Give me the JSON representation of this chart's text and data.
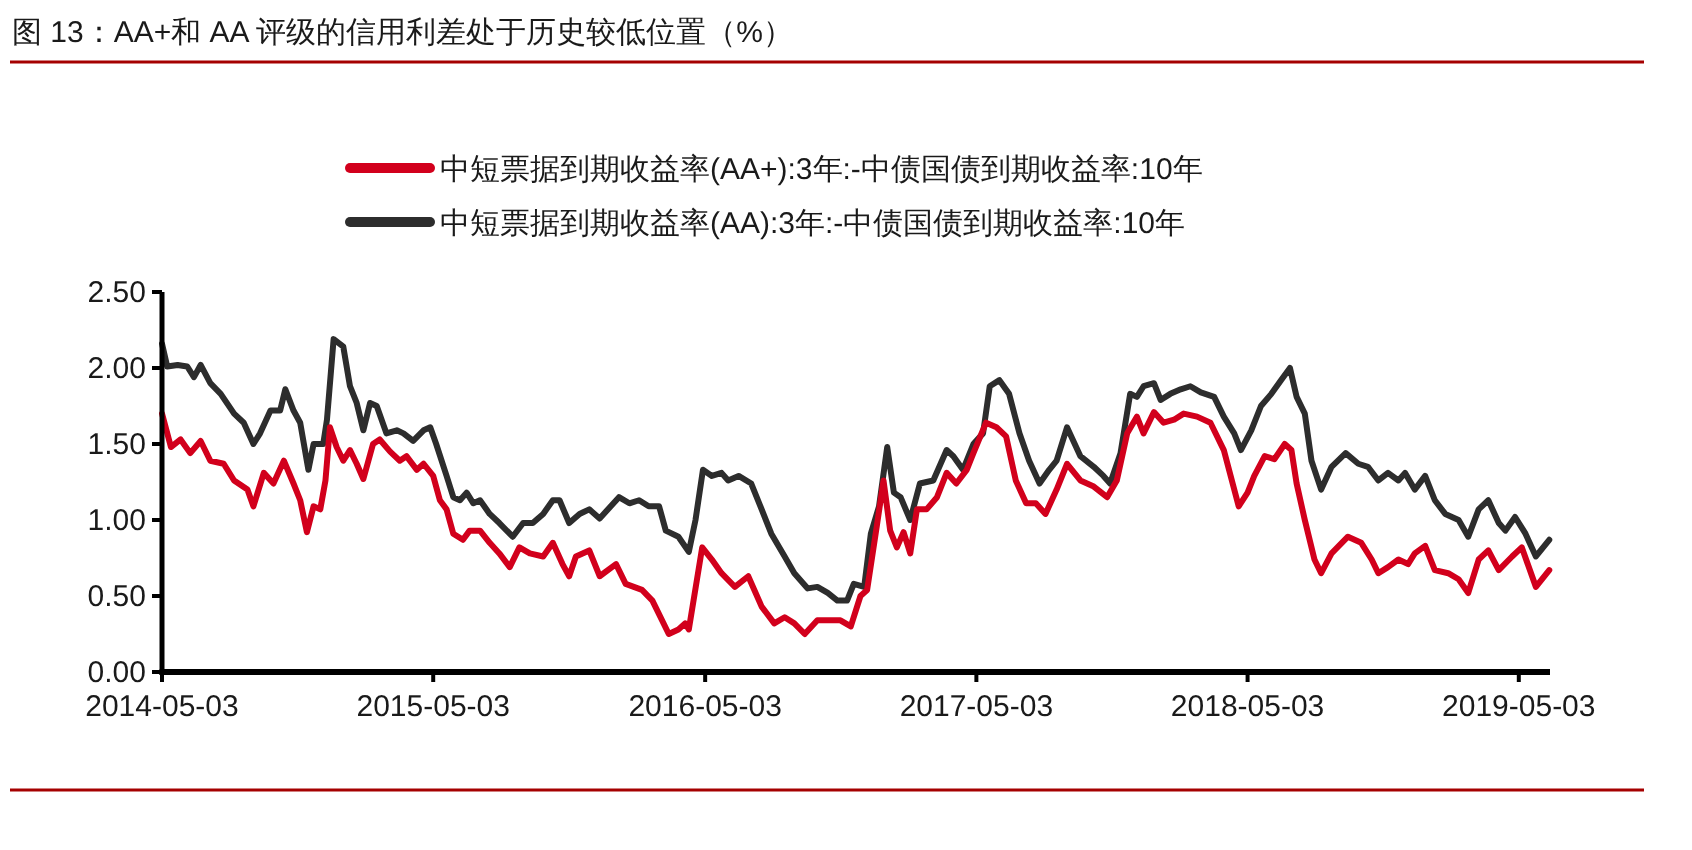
{
  "chart_data": {
    "type": "line",
    "title": "图 13：AA+和 AA 评级的信用利差处于历史较低位置（%）",
    "series": [
      {
        "name": "中短票据到期收益率(AA+):3年:-中债国债到期收益率:10年",
        "color": "#d2001c",
        "x": [
          "2014-05-03",
          "2014-05-15",
          "2014-05-28",
          "2014-06-10",
          "2014-06-24",
          "2014-07-07",
          "2014-07-25",
          "2014-08-08",
          "2014-08-26",
          "2014-09-03",
          "2014-09-17",
          "2014-09-30",
          "2014-10-14",
          "2014-10-27",
          "2014-11-05",
          "2014-11-14",
          "2014-11-23",
          "2014-12-02",
          "2014-12-09",
          "2014-12-15",
          "2014-12-24",
          "2015-01-02",
          "2015-01-11",
          "2015-01-20",
          "2015-01-29",
          "2015-02-11",
          "2015-02-20",
          "2015-03-06",
          "2015-03-19",
          "2015-03-28",
          "2015-04-11",
          "2015-04-20",
          "2015-05-03",
          "2015-05-12",
          "2015-05-21",
          "2015-05-30",
          "2015-06-12",
          "2015-06-21",
          "2015-07-05",
          "2015-07-18",
          "2015-07-31",
          "2015-08-14",
          "2015-08-27",
          "2015-09-10",
          "2015-09-28",
          "2015-10-11",
          "2015-10-24",
          "2015-11-02",
          "2015-11-11",
          "2015-11-29",
          "2015-12-13",
          "2016-01-04",
          "2016-01-17",
          "2016-02-08",
          "2016-02-22",
          "2016-03-15",
          "2016-03-28",
          "2016-04-06",
          "2016-04-11",
          "2016-04-29",
          "2016-05-12",
          "2016-05-25",
          "2016-06-12",
          "2016-06-30",
          "2016-07-18",
          "2016-08-04",
          "2016-08-18",
          "2016-08-31",
          "2016-09-14",
          "2016-10-01",
          "2016-10-19",
          "2016-11-01",
          "2016-11-15",
          "2016-11-28",
          "2016-12-07",
          "2016-12-20",
          "2016-12-29",
          "2017-01-07",
          "2017-01-16",
          "2017-01-25",
          "2017-02-03",
          "2017-02-12",
          "2017-02-25",
          "2017-03-11",
          "2017-03-24",
          "2017-04-06",
          "2017-04-20",
          "2017-04-29",
          "2017-05-16",
          "2017-05-30",
          "2017-06-12",
          "2017-06-25",
          "2017-07-09",
          "2017-07-22",
          "2017-08-04",
          "2017-08-19",
          "2017-09-02",
          "2017-09-20",
          "2017-10-08",
          "2017-10-26",
          "2017-11-08",
          "2017-11-22",
          "2017-12-05",
          "2017-12-14",
          "2017-12-28",
          "2018-01-10",
          "2018-01-24",
          "2018-02-06",
          "2018-02-24",
          "2018-03-14",
          "2018-04-01",
          "2018-04-21",
          "2018-05-03",
          "2018-05-12",
          "2018-05-26",
          "2018-06-08",
          "2018-06-22",
          "2018-07-01",
          "2018-07-08",
          "2018-07-19",
          "2018-08-01",
          "2018-08-10",
          "2018-08-24",
          "2018-09-15",
          "2018-10-03",
          "2018-10-17",
          "2018-10-26",
          "2018-11-08",
          "2018-11-22",
          "2018-12-05",
          "2018-12-14",
          "2018-12-28",
          "2019-01-10",
          "2019-01-28",
          "2019-02-11",
          "2019-02-24",
          "2019-03-10",
          "2019-03-23",
          "2019-04-06",
          "2019-04-24",
          "2019-05-07",
          "2019-05-26",
          "2019-06-13"
        ],
        "values": [
          1.7,
          1.48,
          1.53,
          1.44,
          1.52,
          1.39,
          1.37,
          1.26,
          1.2,
          1.09,
          1.31,
          1.24,
          1.39,
          1.24,
          1.13,
          0.92,
          1.09,
          1.07,
          1.26,
          1.61,
          1.48,
          1.39,
          1.46,
          1.37,
          1.27,
          1.5,
          1.53,
          1.45,
          1.39,
          1.42,
          1.33,
          1.37,
          1.29,
          1.13,
          1.07,
          0.91,
          0.87,
          0.93,
          0.93,
          0.85,
          0.78,
          0.69,
          0.82,
          0.78,
          0.76,
          0.85,
          0.71,
          0.63,
          0.76,
          0.8,
          0.63,
          0.71,
          0.58,
          0.54,
          0.47,
          0.25,
          0.28,
          0.32,
          0.28,
          0.82,
          0.74,
          0.65,
          0.56,
          0.63,
          0.43,
          0.32,
          0.36,
          0.32,
          0.25,
          0.34,
          0.34,
          0.34,
          0.3,
          0.5,
          0.54,
          0.96,
          1.26,
          0.93,
          0.82,
          0.92,
          0.78,
          1.07,
          1.07,
          1.15,
          1.31,
          1.24,
          1.33,
          1.44,
          1.64,
          1.61,
          1.55,
          1.26,
          1.11,
          1.11,
          1.04,
          1.2,
          1.37,
          1.26,
          1.22,
          1.15,
          1.26,
          1.57,
          1.68,
          1.57,
          1.71,
          1.64,
          1.66,
          1.7,
          1.68,
          1.64,
          1.46,
          1.09,
          1.18,
          1.29,
          1.42,
          1.4,
          1.5,
          1.46,
          1.24,
          1.0,
          0.74,
          0.65,
          0.78,
          0.89,
          0.85,
          0.74,
          0.65,
          0.69,
          0.74,
          0.71,
          0.78,
          0.83,
          0.67,
          0.65,
          0.61,
          0.52,
          0.74,
          0.8,
          0.67,
          0.76,
          0.82,
          0.56,
          0.67
        ]
      },
      {
        "name": "中短票据到期收益率(AA):3年:-中债国债到期收益率:10年",
        "color": "#2d2d2d",
        "x": [
          "2014-05-03",
          "2014-05-10",
          "2014-05-24",
          "2014-06-06",
          "2014-06-15",
          "2014-06-24",
          "2014-07-07",
          "2014-07-21",
          "2014-08-08",
          "2014-08-21",
          "2014-09-03",
          "2014-09-12",
          "2014-09-26",
          "2014-10-09",
          "2014-10-16",
          "2014-10-27",
          "2014-11-05",
          "2014-11-16",
          "2014-11-23",
          "2014-12-06",
          "2014-12-11",
          "2014-12-20",
          "2015-01-02",
          "2015-01-11",
          "2015-01-20",
          "2015-01-29",
          "2015-02-07",
          "2015-02-16",
          "2015-03-01",
          "2015-03-15",
          "2015-03-24",
          "2015-04-06",
          "2015-04-20",
          "2015-04-29",
          "2015-05-07",
          "2015-05-21",
          "2015-05-30",
          "2015-06-08",
          "2015-06-17",
          "2015-06-26",
          "2015-07-05",
          "2015-07-18",
          "2015-07-31",
          "2015-08-18",
          "2015-09-01",
          "2015-09-14",
          "2015-09-28",
          "2015-10-11",
          "2015-10-20",
          "2015-11-02",
          "2015-11-16",
          "2015-11-29",
          "2015-12-13",
          "2016-01-08",
          "2016-01-22",
          "2016-02-04",
          "2016-02-17",
          "2016-03-02",
          "2016-03-11",
          "2016-03-28",
          "2016-04-11",
          "2016-04-20",
          "2016-04-30",
          "2016-05-12",
          "2016-05-25",
          "2016-06-03",
          "2016-06-17",
          "2016-07-04",
          "2016-07-18",
          "2016-07-31",
          "2016-08-18",
          "2016-08-31",
          "2016-09-18",
          "2016-10-01",
          "2016-10-15",
          "2016-10-28",
          "2016-11-10",
          "2016-11-19",
          "2016-12-03",
          "2016-12-12",
          "2016-12-23",
          "2017-01-03",
          "2017-01-12",
          "2017-01-21",
          "2017-02-03",
          "2017-02-16",
          "2017-03-06",
          "2017-03-24",
          "2017-04-02",
          "2017-04-15",
          "2017-04-29",
          "2017-05-12",
          "2017-05-21",
          "2017-06-03",
          "2017-06-16",
          "2017-06-30",
          "2017-07-13",
          "2017-07-27",
          "2017-08-09",
          "2017-08-19",
          "2017-09-02",
          "2017-09-20",
          "2017-10-08",
          "2017-10-21",
          "2017-10-30",
          "2017-11-13",
          "2017-11-26",
          "2017-12-05",
          "2017-12-14",
          "2017-12-28",
          "2018-01-06",
          "2018-01-19",
          "2018-02-02",
          "2018-02-15",
          "2018-03-01",
          "2018-03-19",
          "2018-04-01",
          "2018-04-15",
          "2018-04-24",
          "2018-05-08",
          "2018-05-21",
          "2018-06-04",
          "2018-06-17",
          "2018-06-29",
          "2018-07-08",
          "2018-07-19",
          "2018-07-28",
          "2018-08-10",
          "2018-08-24",
          "2018-09-12",
          "2018-09-29",
          "2018-10-12",
          "2018-10-26",
          "2018-11-08",
          "2018-11-22",
          "2018-12-01",
          "2018-12-14",
          "2018-12-28",
          "2019-01-10",
          "2019-01-24",
          "2019-02-11",
          "2019-02-24",
          "2019-03-10",
          "2019-03-23",
          "2019-04-06",
          "2019-04-15",
          "2019-04-28",
          "2019-05-12",
          "2019-05-26",
          "2019-06-13"
        ],
        "values": [
          2.16,
          2.01,
          2.02,
          2.01,
          1.94,
          2.02,
          1.9,
          1.83,
          1.7,
          1.64,
          1.5,
          1.57,
          1.72,
          1.72,
          1.86,
          1.72,
          1.64,
          1.33,
          1.5,
          1.5,
          1.66,
          2.19,
          2.14,
          1.88,
          1.77,
          1.59,
          1.77,
          1.75,
          1.57,
          1.59,
          1.57,
          1.52,
          1.59,
          1.61,
          1.5,
          1.29,
          1.15,
          1.13,
          1.18,
          1.11,
          1.13,
          1.04,
          0.98,
          0.89,
          0.98,
          0.98,
          1.04,
          1.13,
          1.13,
          0.98,
          1.04,
          1.07,
          1.01,
          1.15,
          1.11,
          1.13,
          1.09,
          1.09,
          0.93,
          0.89,
          0.79,
          1.0,
          1.33,
          1.29,
          1.31,
          1.26,
          1.29,
          1.24,
          1.07,
          0.91,
          0.76,
          0.65,
          0.55,
          0.56,
          0.52,
          0.47,
          0.47,
          0.58,
          0.56,
          0.91,
          1.09,
          1.48,
          1.18,
          1.15,
          1.0,
          1.24,
          1.26,
          1.46,
          1.42,
          1.33,
          1.5,
          1.57,
          1.88,
          1.92,
          1.83,
          1.57,
          1.39,
          1.24,
          1.33,
          1.39,
          1.61,
          1.42,
          1.35,
          1.29,
          1.24,
          1.44,
          1.83,
          1.81,
          1.88,
          1.9,
          1.79,
          1.83,
          1.86,
          1.88,
          1.84,
          1.81,
          1.68,
          1.57,
          1.46,
          1.59,
          1.75,
          1.83,
          1.92,
          2.0,
          1.81,
          1.7,
          1.39,
          1.2,
          1.35,
          1.44,
          1.37,
          1.35,
          1.26,
          1.31,
          1.26,
          1.31,
          1.2,
          1.29,
          1.13,
          1.04,
          1.0,
          0.89,
          1.07,
          1.13,
          0.98,
          0.93,
          1.02,
          0.91,
          0.76,
          0.87
        ]
      }
    ],
    "xlim": [
      "2014-05-03",
      "2019-06-14"
    ],
    "xticks": [
      "2014-05-03",
      "2015-05-03",
      "2016-05-03",
      "2017-05-03",
      "2018-05-03",
      "2019-05-03"
    ],
    "ylim": [
      0,
      2.5
    ],
    "yticks": [
      {
        "value": 0,
        "label": "0.00"
      },
      {
        "value": 0.5,
        "label": "0.50"
      },
      {
        "value": 1,
        "label": "1.00"
      },
      {
        "value": 1.5,
        "label": "1.50"
      },
      {
        "value": 2,
        "label": "2.00"
      },
      {
        "value": 2.5,
        "label": "2.50"
      }
    ],
    "grid": false,
    "legend": "top",
    "line_style": "solid"
  }
}
